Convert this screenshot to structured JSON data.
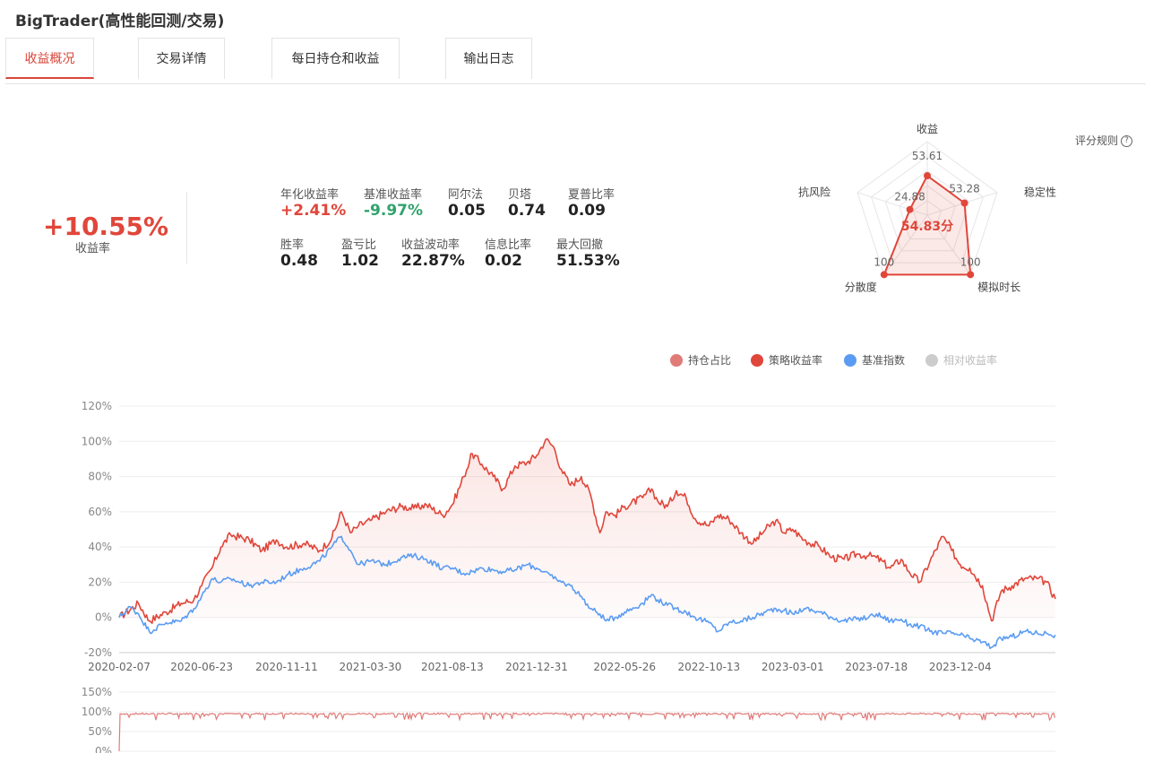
{
  "app": {
    "title": "BigTrader(高性能回测/交易)"
  },
  "tabs": [
    {
      "label": "收益概况",
      "active": true
    },
    {
      "label": "交易详情",
      "active": false
    },
    {
      "label": "每日持仓和收益",
      "active": false
    },
    {
      "label": "输出日志",
      "active": false
    }
  ],
  "summary": {
    "total_return": "+10.55%",
    "total_return_label": "收益率"
  },
  "metrics": [
    {
      "label": "年化收益率",
      "value": "+2.41%",
      "tone": "pos"
    },
    {
      "label": "基准收益率",
      "value": "-9.97%",
      "tone": "neg"
    },
    {
      "label": "阿尔法",
      "value": "0.05",
      "tone": ""
    },
    {
      "label": "贝塔",
      "value": "0.74",
      "tone": ""
    },
    {
      "label": "夏普比率",
      "value": "0.09",
      "tone": ""
    },
    {
      "label": "胜率",
      "value": "0.48",
      "tone": ""
    },
    {
      "label": "盈亏比",
      "value": "1.02",
      "tone": ""
    },
    {
      "label": "收益波动率",
      "value": "22.87%",
      "tone": ""
    },
    {
      "label": "信息比率",
      "value": "0.02",
      "tone": ""
    },
    {
      "label": "最大回撤",
      "value": "51.53%",
      "tone": ""
    }
  ],
  "score_rule_label": "评分规则",
  "score_rule_icon": "question-circle-icon",
  "radar": {
    "score_text": "54.83分",
    "max": 100,
    "axes": [
      {
        "label": "收益",
        "value": 53.61,
        "value_text": "53.61"
      },
      {
        "label": "稳定性",
        "value": 53.28,
        "value_text": "53.28"
      },
      {
        "label": "模拟时长",
        "value": 100,
        "value_text": "100"
      },
      {
        "label": "分散度",
        "value": 100,
        "value_text": "100"
      },
      {
        "label": "抗风险",
        "value": 24.88,
        "value_text": "24.88"
      }
    ]
  },
  "legend": [
    {
      "label": "持仓占比",
      "color": "#e07b78",
      "enabled": true
    },
    {
      "label": "策略收益率",
      "color": "#e0463a",
      "enabled": true
    },
    {
      "label": "基准指数",
      "color": "#5b9cf2",
      "enabled": true
    },
    {
      "label": "相对收益率",
      "color": "#cccccc",
      "enabled": false
    }
  ],
  "chart_data": {
    "type": "line",
    "x_tick_labels": [
      "2020-02-07",
      "2020-06-23",
      "2020-11-11",
      "2021-03-30",
      "2021-08-13",
      "2021-12-31",
      "2022-05-26",
      "2022-10-13",
      "2023-03-01",
      "2023-07-18",
      "2023-12-04"
    ],
    "x_range": [
      "2020-02-07",
      "2024-05-10"
    ],
    "main_y_ticks": [
      "120%",
      "100%",
      "80%",
      "60%",
      "40%",
      "20%",
      "0%",
      "-20%"
    ],
    "main_ylim": [
      -20,
      120
    ],
    "series": [
      {
        "name": "策略收益率",
        "color": "#e0463a",
        "fill": true,
        "points": [
          [
            "2020-02-07",
            0
          ],
          [
            "2020-03-10",
            8
          ],
          [
            "2020-03-28",
            -2
          ],
          [
            "2020-04-25",
            3
          ],
          [
            "2020-05-20",
            8
          ],
          [
            "2020-06-10",
            10
          ],
          [
            "2020-06-23",
            18
          ],
          [
            "2020-07-10",
            28
          ],
          [
            "2020-07-25",
            40
          ],
          [
            "2020-08-10",
            47
          ],
          [
            "2020-09-10",
            44
          ],
          [
            "2020-10-01",
            38
          ],
          [
            "2020-10-25",
            44
          ],
          [
            "2020-11-11",
            40
          ],
          [
            "2020-12-10",
            42
          ],
          [
            "2021-01-05",
            38
          ],
          [
            "2021-01-25",
            45
          ],
          [
            "2021-02-10",
            60
          ],
          [
            "2021-02-25",
            48
          ],
          [
            "2021-03-10",
            52
          ],
          [
            "2021-03-30",
            55
          ],
          [
            "2021-04-25",
            60
          ],
          [
            "2021-05-20",
            63
          ],
          [
            "2021-06-10",
            62
          ],
          [
            "2021-07-01",
            64
          ],
          [
            "2021-07-28",
            58
          ],
          [
            "2021-08-13",
            64
          ],
          [
            "2021-09-01",
            80
          ],
          [
            "2021-09-15",
            93
          ],
          [
            "2021-10-01",
            87
          ],
          [
            "2021-10-20",
            80
          ],
          [
            "2021-11-05",
            73
          ],
          [
            "2021-11-25",
            86
          ],
          [
            "2021-12-15",
            88
          ],
          [
            "2021-12-31",
            92
          ],
          [
            "2022-01-15",
            101
          ],
          [
            "2022-01-28",
            97
          ],
          [
            "2022-02-10",
            84
          ],
          [
            "2022-02-25",
            75
          ],
          [
            "2022-03-15",
            80
          ],
          [
            "2022-03-30",
            70
          ],
          [
            "2022-04-15",
            48
          ],
          [
            "2022-04-25",
            60
          ],
          [
            "2022-05-10",
            58
          ],
          [
            "2022-05-26",
            63
          ],
          [
            "2022-06-25",
            68
          ],
          [
            "2022-07-10",
            73
          ],
          [
            "2022-07-20",
            66
          ],
          [
            "2022-08-05",
            63
          ],
          [
            "2022-08-20",
            72
          ],
          [
            "2022-09-05",
            68
          ],
          [
            "2022-09-20",
            56
          ],
          [
            "2022-10-13",
            52
          ],
          [
            "2022-10-28",
            58
          ],
          [
            "2022-11-15",
            56
          ],
          [
            "2022-12-05",
            48
          ],
          [
            "2022-12-25",
            42
          ],
          [
            "2023-01-15",
            50
          ],
          [
            "2023-02-01",
            55
          ],
          [
            "2023-02-15",
            48
          ],
          [
            "2023-03-01",
            50
          ],
          [
            "2023-03-20",
            44
          ],
          [
            "2023-04-15",
            40
          ],
          [
            "2023-05-05",
            34
          ],
          [
            "2023-05-25",
            33
          ],
          [
            "2023-06-15",
            36
          ],
          [
            "2023-07-05",
            35
          ],
          [
            "2023-07-18",
            34
          ],
          [
            "2023-08-10",
            28
          ],
          [
            "2023-08-28",
            33
          ],
          [
            "2023-09-10",
            26
          ],
          [
            "2023-09-28",
            20
          ],
          [
            "2023-10-15",
            32
          ],
          [
            "2023-11-05",
            46
          ],
          [
            "2023-11-20",
            38
          ],
          [
            "2023-12-04",
            30
          ],
          [
            "2023-12-20",
            28
          ],
          [
            "2024-01-10",
            18
          ],
          [
            "2024-01-25",
            -2
          ],
          [
            "2024-02-10",
            15
          ],
          [
            "2024-02-28",
            18
          ],
          [
            "2024-03-20",
            22
          ],
          [
            "2024-04-10",
            22
          ],
          [
            "2024-04-25",
            20
          ],
          [
            "2024-05-10",
            10.55
          ]
        ]
      },
      {
        "name": "基准指数",
        "color": "#5b9cf2",
        "fill": false,
        "points": [
          [
            "2020-02-07",
            0
          ],
          [
            "2020-02-25",
            6
          ],
          [
            "2020-03-10",
            2
          ],
          [
            "2020-03-28",
            -8
          ],
          [
            "2020-04-25",
            -3
          ],
          [
            "2020-05-20",
            -2
          ],
          [
            "2020-06-10",
            5
          ],
          [
            "2020-06-23",
            12
          ],
          [
            "2020-07-10",
            22
          ],
          [
            "2020-07-25",
            20
          ],
          [
            "2020-08-10",
            22
          ],
          [
            "2020-09-10",
            18
          ],
          [
            "2020-10-01",
            20
          ],
          [
            "2020-10-25",
            20
          ],
          [
            "2020-11-11",
            24
          ],
          [
            "2020-12-10",
            28
          ],
          [
            "2021-01-05",
            32
          ],
          [
            "2021-01-25",
            40
          ],
          [
            "2021-02-10",
            46
          ],
          [
            "2021-02-25",
            38
          ],
          [
            "2021-03-10",
            30
          ],
          [
            "2021-03-30",
            32
          ],
          [
            "2021-04-25",
            30
          ],
          [
            "2021-05-20",
            34
          ],
          [
            "2021-06-10",
            35
          ],
          [
            "2021-07-01",
            33
          ],
          [
            "2021-07-28",
            28
          ],
          [
            "2021-08-13",
            28
          ],
          [
            "2021-09-01",
            25
          ],
          [
            "2021-09-15",
            26
          ],
          [
            "2021-10-01",
            28
          ],
          [
            "2021-10-20",
            27
          ],
          [
            "2021-11-05",
            26
          ],
          [
            "2021-11-25",
            27
          ],
          [
            "2021-12-15",
            30
          ],
          [
            "2021-12-31",
            28
          ],
          [
            "2022-01-15",
            26
          ],
          [
            "2022-01-28",
            22
          ],
          [
            "2022-02-10",
            20
          ],
          [
            "2022-02-25",
            18
          ],
          [
            "2022-03-15",
            12
          ],
          [
            "2022-03-30",
            5
          ],
          [
            "2022-04-15",
            2
          ],
          [
            "2022-04-25",
            -2
          ],
          [
            "2022-05-10",
            0
          ],
          [
            "2022-05-26",
            3
          ],
          [
            "2022-06-25",
            8
          ],
          [
            "2022-07-10",
            13
          ],
          [
            "2022-07-20",
            10
          ],
          [
            "2022-08-05",
            7
          ],
          [
            "2022-08-20",
            5
          ],
          [
            "2022-09-05",
            3
          ],
          [
            "2022-09-20",
            0
          ],
          [
            "2022-10-13",
            -3
          ],
          [
            "2022-10-28",
            -8
          ],
          [
            "2022-11-15",
            -3
          ],
          [
            "2022-12-05",
            -2
          ],
          [
            "2022-12-25",
            0
          ],
          [
            "2023-01-15",
            3
          ],
          [
            "2023-02-01",
            5
          ],
          [
            "2023-02-15",
            4
          ],
          [
            "2023-03-01",
            2
          ],
          [
            "2023-03-20",
            5
          ],
          [
            "2023-04-15",
            3
          ],
          [
            "2023-05-05",
            0
          ],
          [
            "2023-05-25",
            -2
          ],
          [
            "2023-06-15",
            -1
          ],
          [
            "2023-07-05",
            0
          ],
          [
            "2023-07-18",
            2
          ],
          [
            "2023-08-10",
            -2
          ],
          [
            "2023-08-28",
            -1
          ],
          [
            "2023-09-10",
            -4
          ],
          [
            "2023-09-28",
            -5
          ],
          [
            "2023-10-15",
            -8
          ],
          [
            "2023-11-05",
            -9
          ],
          [
            "2023-11-20",
            -9
          ],
          [
            "2023-12-04",
            -10
          ],
          [
            "2023-12-20",
            -12
          ],
          [
            "2024-01-10",
            -14
          ],
          [
            "2024-01-25",
            -17
          ],
          [
            "2024-02-10",
            -12
          ],
          [
            "2024-02-28",
            -11
          ],
          [
            "2024-03-20",
            -8
          ],
          [
            "2024-04-10",
            -9
          ],
          [
            "2024-04-25",
            -9
          ],
          [
            "2024-05-10",
            -9.97
          ]
        ]
      }
    ],
    "sub_chart": {
      "name": "持仓占比",
      "y_ticks": [
        "150%",
        "100%",
        "50%",
        "0%"
      ],
      "ylim": [
        0,
        150
      ],
      "typical_value": 95,
      "range_values": [
        78,
        100
      ]
    }
  }
}
